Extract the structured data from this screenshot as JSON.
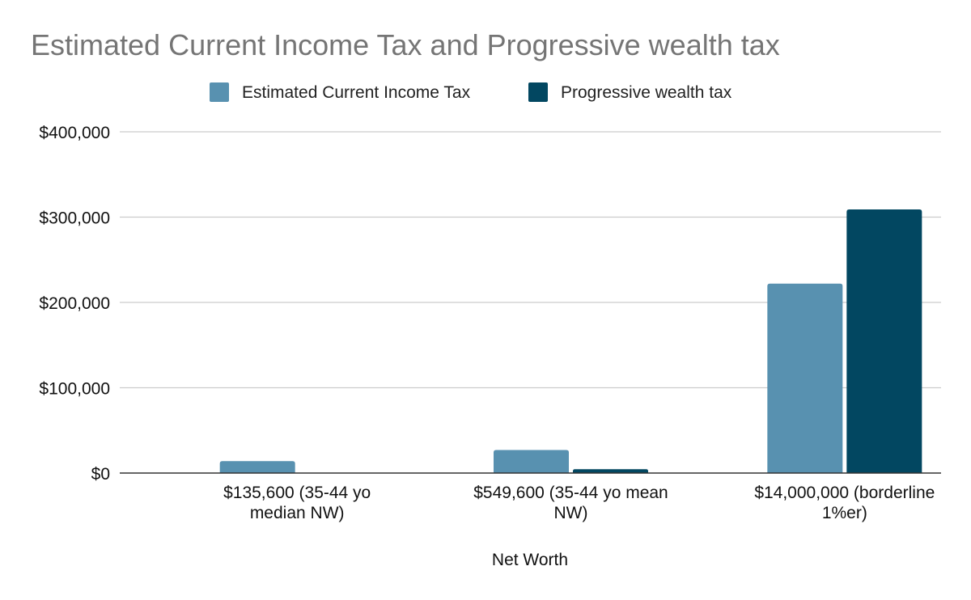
{
  "chart_data": {
    "type": "bar",
    "title": "Estimated Current Income Tax and Progressive wealth tax",
    "xlabel": "Net Worth",
    "ylabel": "",
    "categories": [
      [
        "$135,600 (35-44 yo",
        "median NW)"
      ],
      [
        "$549,600 (35-44 yo mean",
        "NW)"
      ],
      [
        "$14,000,000 (borderline",
        "1%er)"
      ]
    ],
    "series": [
      {
        "name": "Estimated Current Income Tax",
        "color": "#5891b0",
        "values": [
          14000,
          27000,
          222000
        ]
      },
      {
        "name": "Progressive wealth tax",
        "color": "#024761",
        "values": [
          0,
          4500,
          309000
        ]
      }
    ],
    "ylim": [
      0,
      400000
    ],
    "yticks": [
      0,
      100000,
      200000,
      300000,
      400000
    ],
    "ytick_labels": [
      "$0",
      "$100,000",
      "$200,000",
      "$300,000",
      "$400,000"
    ],
    "grid": true,
    "legend_position": "top"
  }
}
